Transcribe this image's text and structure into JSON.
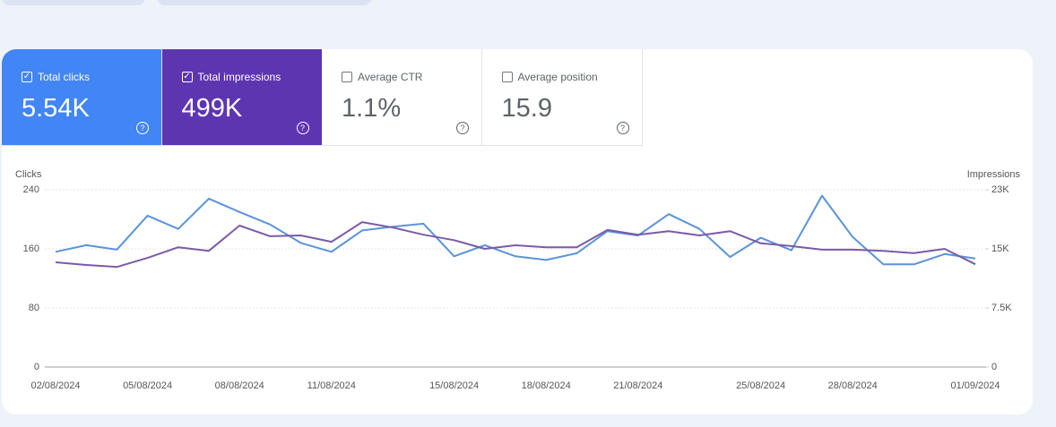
{
  "metrics": [
    {
      "label": "Total clicks",
      "value": "5.54K",
      "checked": true,
      "color": "#4285f4"
    },
    {
      "label": "Total impressions",
      "value": "499K",
      "checked": true,
      "color": "#5e35b1"
    },
    {
      "label": "Average CTR",
      "value": "1.1%",
      "checked": false,
      "color": "#ffffff"
    },
    {
      "label": "Average position",
      "value": "15.9",
      "checked": false,
      "color": "#ffffff"
    }
  ],
  "chart_data": {
    "type": "line",
    "y_label": "Clicks",
    "y2_label": "Impressions",
    "categories": [
      "02/08/2024",
      null,
      null,
      "05/08/2024",
      null,
      null,
      "08/08/2024",
      null,
      null,
      "11/08/2024",
      null,
      null,
      null,
      "15/08/2024",
      null,
      null,
      "18/08/2024",
      null,
      null,
      "21/08/2024",
      null,
      null,
      null,
      "25/08/2024",
      null,
      null,
      "28/08/2024",
      null,
      null,
      null,
      "01/09/2024"
    ],
    "series": [
      {
        "color": "#5b93d8",
        "axis": "y",
        "values": [
          156,
          165,
          159,
          205,
          187,
          228,
          210,
          193,
          168,
          156,
          185,
          190,
          194,
          150,
          165,
          150,
          145,
          154,
          184,
          178,
          207,
          187,
          149,
          175,
          158,
          232,
          176,
          139,
          139,
          153,
          147
        ]
      },
      {
        "color": "#7b5aa6",
        "axis": "y2",
        "values": [
          13300,
          12950,
          12700,
          13850,
          15200,
          14750,
          17950,
          16600,
          16700,
          15900,
          18400,
          17700,
          16800,
          16100,
          15000,
          15450,
          15200,
          15200,
          17400,
          16800,
          17250,
          16700,
          17250,
          15700,
          15350,
          14900,
          14900,
          14750,
          14450,
          15000,
          13050
        ]
      }
    ],
    "ylim": [
      0,
      240
    ],
    "yticks": [
      0,
      80,
      160,
      240
    ],
    "y2lim": [
      0,
      22500
    ],
    "y2ticks": [
      0,
      {
        "value": 7500,
        "label": "7.5K"
      },
      {
        "value": 15000,
        "label": "15K"
      },
      {
        "value": 22500,
        "label": "23K"
      }
    ],
    "grid": true
  }
}
